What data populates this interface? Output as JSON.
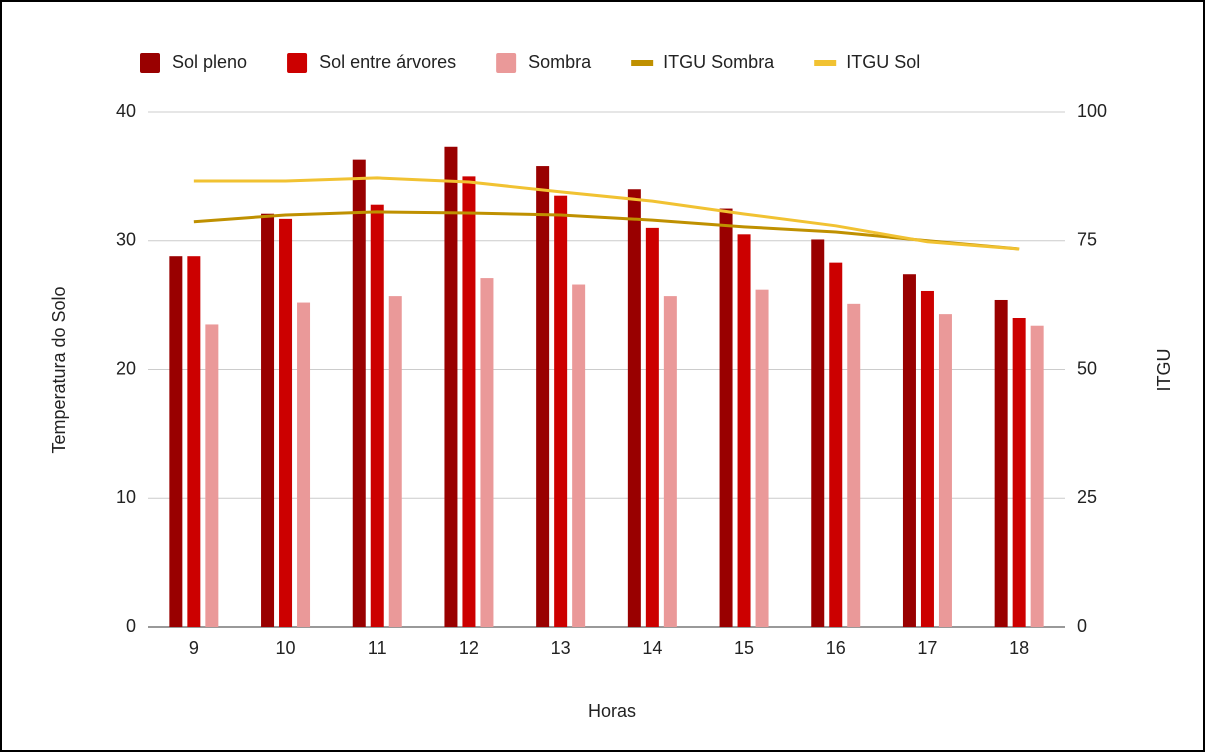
{
  "chart_data": {
    "type": "bar",
    "categories": [
      "9",
      "10",
      "11",
      "12",
      "13",
      "14",
      "15",
      "16",
      "17",
      "18"
    ],
    "x_label": "Horas",
    "y_label": "Temperatura do Solo",
    "y2_label": "ITGU",
    "ylim": [
      0,
      40
    ],
    "yticks": [
      0,
      10,
      20,
      30,
      40
    ],
    "y2lim": [
      0,
      100
    ],
    "y2ticks": [
      0,
      25,
      50,
      75,
      100
    ],
    "grid": true,
    "legend": "top",
    "series": [
      {
        "name": "Sol pleno",
        "type": "bar",
        "color": "#990000",
        "values": [
          28.8,
          32.1,
          36.3,
          37.3,
          35.8,
          34.0,
          32.5,
          30.1,
          27.4,
          25.4
        ]
      },
      {
        "name": "Sol entre árvores",
        "type": "bar",
        "color": "#cc0000",
        "values": [
          28.8,
          31.7,
          32.8,
          35.0,
          33.5,
          31.0,
          30.5,
          28.3,
          26.1,
          24.0
        ]
      },
      {
        "name": "Sombra",
        "type": "bar",
        "color": "#ea9999",
        "values": [
          23.5,
          25.2,
          25.7,
          27.1,
          26.6,
          25.7,
          26.2,
          25.1,
          24.3,
          23.4
        ]
      },
      {
        "name": "ITGU Sombra",
        "type": "line",
        "axis": "y2",
        "color": "#bf9000",
        "values": [
          78.7,
          80.0,
          80.6,
          80.4,
          80.0,
          79.0,
          77.7,
          76.7,
          75.0,
          73.4
        ]
      },
      {
        "name": "ITGU Sol",
        "type": "line",
        "axis": "y2",
        "color": "#f1c232",
        "values": [
          86.6,
          86.6,
          87.2,
          86.4,
          84.5,
          82.7,
          80.2,
          77.9,
          74.8,
          73.4
        ]
      }
    ]
  }
}
